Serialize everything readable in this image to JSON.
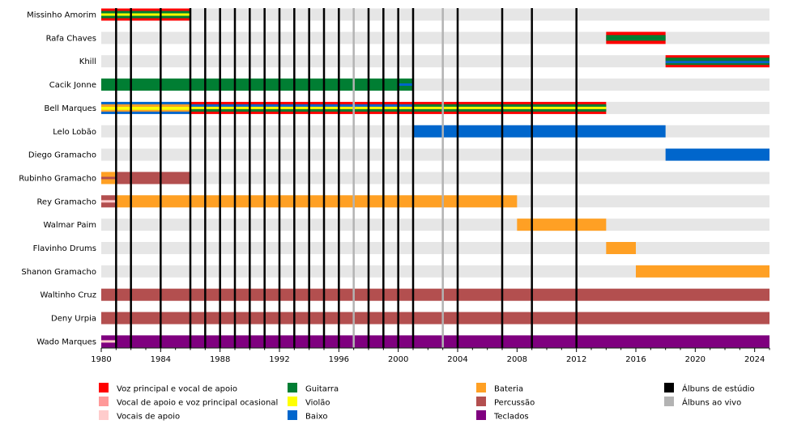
{
  "chart_data": {
    "type": "timeline",
    "title": "",
    "x_range": [
      1980,
      2025
    ],
    "x_ticks": [
      1980,
      1984,
      1988,
      1992,
      1996,
      2000,
      2004,
      2008,
      2012,
      2016,
      2020,
      2024
    ],
    "colors": {
      "lead": "#ff0000",
      "backing_occasional_lead": "#ff9999",
      "backing": "#ffcccc",
      "guitar": "#007e33",
      "acoustic": "#ffff00",
      "bass": "#0066cc",
      "drums": "#ffa024",
      "percussion": "#b34f4f",
      "keys": "#7f007f",
      "studio": "#000000",
      "live": "#b3b3b3"
    },
    "members": [
      {
        "name": "Missinho Amorim",
        "periods": [
          {
            "start": 1980,
            "end": 1986,
            "roles": [
              "lead",
              "guitar",
              "acoustic"
            ]
          }
        ]
      },
      {
        "name": "Rafa Chaves",
        "periods": [
          {
            "start": 2014,
            "end": 2018,
            "roles": [
              "lead",
              "guitar"
            ]
          }
        ]
      },
      {
        "name": "Khill",
        "periods": [
          {
            "start": 2018,
            "end": 2025,
            "roles": [
              "lead",
              "guitar",
              "bass"
            ]
          }
        ]
      },
      {
        "name": "Cacik Jonne",
        "periods": [
          {
            "start": 1980,
            "end": 2000,
            "roles": [
              "guitar"
            ]
          },
          {
            "start": 2000,
            "end": 2001,
            "roles": [
              "guitar",
              "bass"
            ]
          }
        ]
      },
      {
        "name": "Bell Marques",
        "periods": [
          {
            "start": 1980,
            "end": 1986,
            "roles": [
              "bass",
              "acoustic",
              "drums"
            ]
          },
          {
            "start": 1986,
            "end": 2001,
            "roles": [
              "lead",
              "guitar",
              "acoustic",
              "bass"
            ]
          },
          {
            "start": 2001,
            "end": 2014,
            "roles": [
              "lead",
              "guitar",
              "acoustic"
            ]
          }
        ]
      },
      {
        "name": "Lelo Lobão",
        "periods": [
          {
            "start": 2001,
            "end": 2018,
            "roles": [
              "bass"
            ]
          }
        ]
      },
      {
        "name": "Diego Gramacho",
        "periods": [
          {
            "start": 2018,
            "end": 2025,
            "roles": [
              "bass"
            ]
          }
        ]
      },
      {
        "name": "Rubinho Gramacho",
        "periods": [
          {
            "start": 1980,
            "end": 1981,
            "roles": [
              "drums",
              "percussion"
            ]
          },
          {
            "start": 1981,
            "end": 1986,
            "roles": [
              "percussion"
            ]
          }
        ]
      },
      {
        "name": "Rey Gramacho",
        "periods": [
          {
            "start": 1980,
            "end": 1981,
            "roles": [
              "percussion",
              "backing"
            ]
          },
          {
            "start": 1981,
            "end": 2008,
            "roles": [
              "drums"
            ]
          }
        ]
      },
      {
        "name": "Walmar Paim",
        "periods": [
          {
            "start": 2008,
            "end": 2014,
            "roles": [
              "drums"
            ]
          }
        ]
      },
      {
        "name": "Flavinho Drums",
        "periods": [
          {
            "start": 2014,
            "end": 2016,
            "roles": [
              "drums"
            ]
          }
        ]
      },
      {
        "name": "Shanon Gramacho",
        "periods": [
          {
            "start": 2016,
            "end": 2025,
            "roles": [
              "drums"
            ]
          }
        ]
      },
      {
        "name": "Waltinho Cruz",
        "periods": [
          {
            "start": 1980,
            "end": 2025,
            "roles": [
              "percussion"
            ]
          }
        ]
      },
      {
        "name": "Deny Urpia",
        "periods": [
          {
            "start": 1980,
            "end": 2025,
            "roles": [
              "percussion"
            ]
          }
        ]
      },
      {
        "name": "Wado Marques",
        "periods": [
          {
            "start": 1980,
            "end": 1981,
            "roles": [
              "keys",
              "backing"
            ]
          },
          {
            "start": 1981,
            "end": 2025,
            "roles": [
              "keys"
            ]
          }
        ]
      }
    ],
    "studio_albums": [
      1981,
      1982,
      1984,
      1986,
      1987,
      1988,
      1989,
      1990,
      1991,
      1992,
      1993,
      1994,
      1995,
      1996,
      1998,
      1999,
      2000,
      2001,
      2004,
      2007,
      2009,
      2012
    ],
    "live_albums": [
      1997,
      2003
    ],
    "legend": [
      {
        "key": "lead",
        "label": "Voz principal e vocal de apoio"
      },
      {
        "key": "backing_occasional_lead",
        "label": "Vocal de apoio e voz principal ocasional"
      },
      {
        "key": "backing",
        "label": "Vocais de apoio"
      },
      {
        "key": "guitar",
        "label": "Guitarra"
      },
      {
        "key": "acoustic",
        "label": "Violão"
      },
      {
        "key": "bass",
        "label": "Baixo"
      },
      {
        "key": "drums",
        "label": "Bateria"
      },
      {
        "key": "percussion",
        "label": "Percussão"
      },
      {
        "key": "keys",
        "label": "Teclados"
      },
      {
        "key": "studio",
        "label": "Álbuns de estúdio"
      },
      {
        "key": "live",
        "label": "Álbuns ao vivo"
      }
    ]
  }
}
